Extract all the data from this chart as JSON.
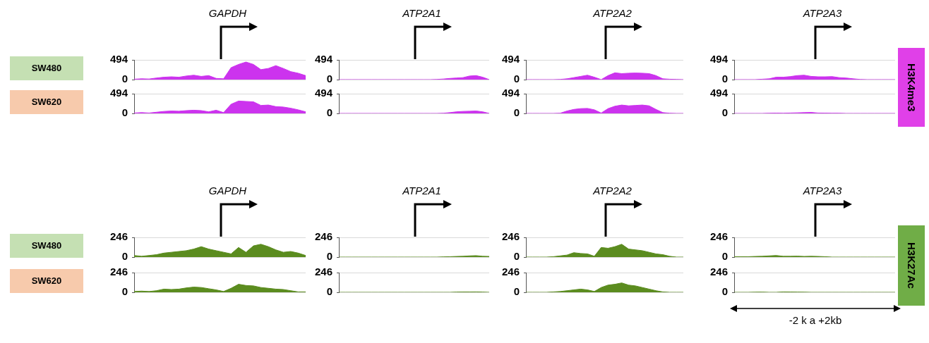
{
  "chart_data": [
    {
      "type": "area",
      "title": "GAPDH",
      "ylabel": "SW480",
      "categories": [
        null,
        null,
        null,
        null,
        null,
        null,
        null,
        null,
        null,
        null,
        null,
        null,
        null,
        null,
        null,
        null,
        null,
        null,
        null,
        null,
        null,
        null,
        null,
        null
      ],
      "values": [
        10,
        20,
        15,
        40,
        60,
        70,
        60,
        90,
        110,
        80,
        100,
        30,
        20,
        300,
        380,
        440,
        380,
        250,
        280,
        350,
        280,
        200,
        160,
        100
      ],
      "color": "#cc33ee",
      "ylim": [
        0,
        494
      ],
      "yticks": [
        0,
        494
      ],
      "grid": "y",
      "tick_labels": "y"
    },
    {
      "type": "area",
      "title": "ATP2A1",
      "categories": [
        null,
        null,
        null,
        null,
        null,
        null,
        null,
        null,
        null,
        null,
        null,
        null,
        null,
        null,
        null,
        null,
        null,
        null,
        null,
        null,
        null,
        null,
        null,
        null
      ],
      "values": [
        0,
        0,
        0,
        0,
        0,
        0,
        0,
        0,
        0,
        0,
        0,
        0,
        0,
        0,
        0,
        5,
        15,
        30,
        40,
        50,
        90,
        100,
        60,
        0
      ],
      "color": "#cc33ee",
      "ylim": [
        0,
        494
      ],
      "yticks": [
        0,
        494
      ],
      "grid": "y",
      "tick_labels": "y"
    },
    {
      "type": "area",
      "title": "ATP2A2",
      "categories": [
        null,
        null,
        null,
        null,
        null,
        null,
        null,
        null,
        null,
        null,
        null,
        null,
        null,
        null,
        null,
        null,
        null,
        null,
        null,
        null,
        null,
        null,
        null,
        null
      ],
      "values": [
        0,
        0,
        0,
        0,
        0,
        5,
        20,
        50,
        80,
        110,
        60,
        0,
        100,
        170,
        150,
        160,
        165,
        160,
        150,
        100,
        20,
        10,
        5,
        0
      ],
      "color": "#cc33ee",
      "ylim": [
        0,
        494
      ],
      "yticks": [
        0,
        494
      ],
      "grid": "y",
      "tick_labels": "y"
    },
    {
      "type": "area",
      "title": "ATP2A3",
      "annotations": [
        "H3K4me3"
      ],
      "categories": [
        null,
        null,
        null,
        null,
        null,
        null,
        null,
        null,
        null,
        null,
        null,
        null,
        null,
        null,
        null,
        null,
        null,
        null,
        null,
        null,
        null,
        null,
        null,
        null
      ],
      "values": [
        0,
        0,
        0,
        0,
        10,
        20,
        60,
        60,
        75,
        100,
        110,
        80,
        70,
        70,
        75,
        50,
        40,
        20,
        5,
        0,
        0,
        0,
        0,
        0
      ],
      "color": "#cc33ee",
      "ylim": [
        0,
        494
      ],
      "yticks": [
        0,
        494
      ],
      "grid": "y",
      "tick_labels": "y"
    },
    {
      "type": "area",
      "ylabel": "SW620",
      "categories": [
        null,
        null,
        null,
        null,
        null,
        null,
        null,
        null,
        null,
        null,
        null,
        null,
        null,
        null,
        null,
        null,
        null,
        null,
        null,
        null,
        null,
        null,
        null,
        null
      ],
      "values": [
        10,
        20,
        10,
        30,
        50,
        60,
        55,
        70,
        80,
        70,
        40,
        80,
        20,
        230,
        310,
        300,
        290,
        200,
        210,
        170,
        160,
        130,
        90,
        40
      ],
      "color": "#cc33ee",
      "ylim": [
        0,
        494
      ],
      "yticks": [
        0,
        494
      ],
      "grid": "y",
      "tick_labels": "y"
    },
    {
      "type": "area",
      "categories": [
        null,
        null,
        null,
        null,
        null,
        null,
        null,
        null,
        null,
        null,
        null,
        null,
        null,
        null,
        null,
        null,
        null,
        null,
        null,
        null,
        null,
        null,
        null,
        null
      ],
      "values": [
        0,
        0,
        0,
        0,
        0,
        0,
        0,
        0,
        0,
        0,
        0,
        0,
        0,
        0,
        0,
        0,
        5,
        20,
        40,
        50,
        55,
        60,
        40,
        0
      ],
      "color": "#cc33ee",
      "ylim": [
        0,
        494
      ],
      "yticks": [
        0,
        494
      ],
      "grid": "y",
      "tick_labels": "y"
    },
    {
      "type": "area",
      "categories": [
        null,
        null,
        null,
        null,
        null,
        null,
        null,
        null,
        null,
        null,
        null,
        null,
        null,
        null,
        null,
        null,
        null,
        null,
        null,
        null,
        null,
        null,
        null,
        null
      ],
      "values": [
        0,
        0,
        0,
        0,
        0,
        5,
        60,
        100,
        120,
        125,
        90,
        10,
        120,
        180,
        210,
        190,
        200,
        210,
        190,
        100,
        20,
        5,
        0,
        0
      ],
      "color": "#cc33ee",
      "ylim": [
        0,
        494
      ],
      "yticks": [
        0,
        494
      ],
      "grid": "y",
      "tick_labels": "y"
    },
    {
      "type": "area",
      "categories": [
        null,
        null,
        null,
        null,
        null,
        null,
        null,
        null,
        null,
        null,
        null,
        null,
        null,
        null,
        null,
        null,
        null,
        null,
        null,
        null,
        null,
        null,
        null,
        null
      ],
      "values": [
        0,
        0,
        0,
        0,
        0,
        5,
        8,
        5,
        10,
        15,
        20,
        25,
        10,
        8,
        5,
        5,
        0,
        0,
        0,
        0,
        0,
        0,
        0,
        0
      ],
      "color": "#cc33ee",
      "ylim": [
        0,
        494
      ],
      "yticks": [
        0,
        494
      ],
      "grid": "y",
      "tick_labels": "y"
    },
    {
      "type": "area",
      "title": "GAPDH",
      "ylabel": "SW480",
      "categories": [
        null,
        null,
        null,
        null,
        null,
        null,
        null,
        null,
        null,
        null,
        null,
        null,
        null,
        null,
        null,
        null,
        null,
        null,
        null,
        null,
        null,
        null,
        null,
        null
      ],
      "values": [
        20,
        10,
        20,
        30,
        50,
        60,
        70,
        80,
        100,
        130,
        100,
        80,
        60,
        40,
        120,
        60,
        140,
        160,
        130,
        90,
        60,
        70,
        50,
        20
      ],
      "color": "#5b8c1f",
      "ylim": [
        0,
        246
      ],
      "yticks": [
        0,
        246
      ],
      "grid": "y",
      "tick_labels": "y"
    },
    {
      "type": "area",
      "title": "ATP2A1",
      "categories": [
        null,
        null,
        null,
        null,
        null,
        null,
        null,
        null,
        null,
        null,
        null,
        null,
        null,
        null,
        null,
        null,
        null,
        null,
        null,
        null,
        null,
        null,
        null,
        null
      ],
      "values": [
        0,
        0,
        0,
        0,
        0,
        0,
        0,
        0,
        0,
        0,
        0,
        0,
        0,
        0,
        0,
        0,
        3,
        5,
        8,
        10,
        15,
        18,
        10,
        8
      ],
      "color": "#5b8c1f",
      "ylim": [
        0,
        246
      ],
      "yticks": [
        0,
        246
      ],
      "grid": "y",
      "tick_labels": "y"
    },
    {
      "type": "area",
      "title": "ATP2A2",
      "categories": [
        null,
        null,
        null,
        null,
        null,
        null,
        null,
        null,
        null,
        null,
        null,
        null,
        null,
        null,
        null,
        null,
        null,
        null,
        null,
        null,
        null,
        null,
        null,
        null
      ],
      "values": [
        0,
        0,
        0,
        0,
        5,
        15,
        25,
        55,
        45,
        40,
        10,
        120,
        110,
        130,
        160,
        100,
        90,
        80,
        60,
        40,
        30,
        10,
        0,
        0
      ],
      "color": "#5b8c1f",
      "ylim": [
        0,
        246
      ],
      "yticks": [
        0,
        246
      ],
      "grid": "y",
      "tick_labels": "y"
    },
    {
      "type": "area",
      "title": "ATP2A3",
      "annotations": [
        "H3K27Ac"
      ],
      "categories": [
        null,
        null,
        null,
        null,
        null,
        null,
        null,
        null,
        null,
        null,
        null,
        null,
        null,
        null,
        null,
        null,
        null,
        null,
        null,
        null,
        null,
        null,
        null,
        null
      ],
      "values": [
        5,
        5,
        5,
        8,
        10,
        15,
        20,
        10,
        10,
        12,
        8,
        10,
        8,
        5,
        0,
        0,
        0,
        0,
        0,
        0,
        0,
        0,
        0,
        0
      ],
      "color": "#5b8c1f",
      "ylim": [
        0,
        246
      ],
      "yticks": [
        0,
        246
      ],
      "grid": "y",
      "tick_labels": "y"
    },
    {
      "type": "area",
      "ylabel": "SW620",
      "categories": [
        null,
        null,
        null,
        null,
        null,
        null,
        null,
        null,
        null,
        null,
        null,
        null,
        null,
        null,
        null,
        null,
        null,
        null,
        null,
        null,
        null,
        null,
        null,
        null
      ],
      "values": [
        10,
        15,
        10,
        20,
        40,
        35,
        40,
        55,
        65,
        60,
        45,
        30,
        10,
        50,
        100,
        85,
        80,
        60,
        50,
        40,
        35,
        20,
        5,
        5
      ],
      "color": "#5b8c1f",
      "ylim": [
        0,
        246
      ],
      "yticks": [
        0,
        246
      ],
      "grid": "y",
      "tick_labels": "y"
    },
    {
      "type": "area",
      "categories": [
        null,
        null,
        null,
        null,
        null,
        null,
        null,
        null,
        null,
        null,
        null,
        null,
        null,
        null,
        null,
        null,
        null,
        null,
        null,
        null,
        null,
        null,
        null,
        null
      ],
      "values": [
        0,
        0,
        0,
        0,
        0,
        0,
        0,
        0,
        0,
        0,
        0,
        0,
        0,
        0,
        0,
        0,
        0,
        0,
        3,
        4,
        4,
        5,
        3,
        0
      ],
      "color": "#5b8c1f",
      "ylim": [
        0,
        246
      ],
      "yticks": [
        0,
        246
      ],
      "grid": "y",
      "tick_labels": "y"
    },
    {
      "type": "area",
      "categories": [
        null,
        null,
        null,
        null,
        null,
        null,
        null,
        null,
        null,
        null,
        null,
        null,
        null,
        null,
        null,
        null,
        null,
        null,
        null,
        null,
        null,
        null,
        null,
        null
      ],
      "values": [
        0,
        0,
        0,
        0,
        5,
        10,
        20,
        30,
        40,
        30,
        10,
        60,
        90,
        100,
        117,
        90,
        80,
        60,
        40,
        20,
        5,
        0,
        0,
        0
      ],
      "color": "#5b8c1f",
      "ylim": [
        0,
        246
      ],
      "yticks": [
        0,
        246
      ],
      "grid": "y",
      "tick_labels": "y"
    },
    {
      "type": "area",
      "annotations": [
        "-2 k a +2kb"
      ],
      "categories": [
        null,
        null,
        null,
        null,
        null,
        null,
        null,
        null,
        null,
        null,
        null,
        null,
        null,
        null,
        null,
        null,
        null,
        null,
        null,
        null,
        null,
        null,
        null,
        null
      ],
      "values": [
        0,
        0,
        0,
        2,
        3,
        0,
        0,
        5,
        4,
        3,
        2,
        0,
        0,
        0,
        0,
        0,
        0,
        0,
        0,
        0,
        0,
        0,
        0,
        0
      ],
      "color": "#5b8c1f",
      "ylim": [
        0,
        246
      ],
      "yticks": [
        0,
        246
      ],
      "grid": "y",
      "tick_labels": "y"
    }
  ]
}
